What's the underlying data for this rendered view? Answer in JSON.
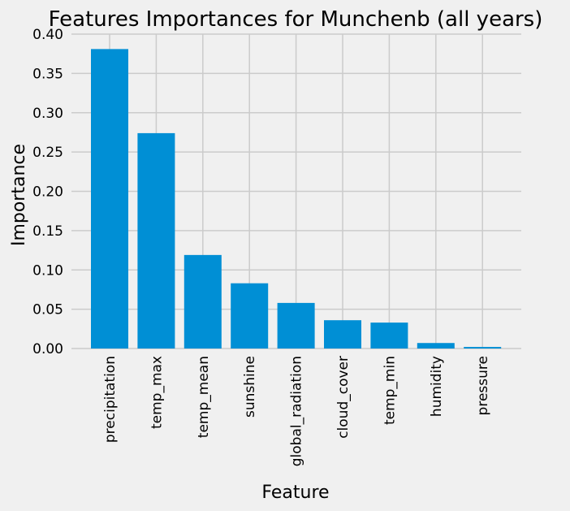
{
  "chart_data": {
    "type": "bar",
    "title": "Features Importances for Munchenb (all years)",
    "xlabel": "Feature",
    "ylabel": "Importance",
    "ylim": [
      0,
      0.4
    ],
    "yticks": [
      "0.00",
      "0.05",
      "0.10",
      "0.15",
      "0.20",
      "0.25",
      "0.30",
      "0.35",
      "0.40"
    ],
    "categories": [
      "precipitation",
      "temp_max",
      "temp_mean",
      "sunshine",
      "global_radiation",
      "cloud_cover",
      "temp_min",
      "humidity",
      "pressure"
    ],
    "values": [
      0.381,
      0.274,
      0.119,
      0.083,
      0.058,
      0.036,
      0.033,
      0.007,
      0.002
    ],
    "bar_color": "#008fd5",
    "grid": true,
    "background": "#f0f0f0"
  }
}
